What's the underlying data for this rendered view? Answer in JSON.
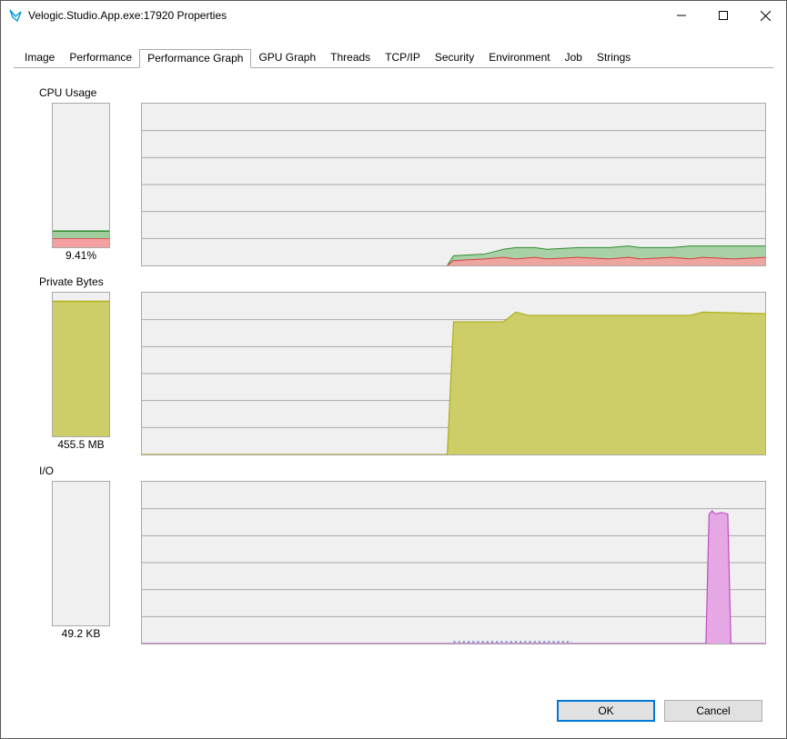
{
  "window": {
    "title": "Velogic.Studio.App.exe:17920 Properties",
    "icon_color": "#0099d8"
  },
  "tabs": {
    "items": [
      "Image",
      "Performance",
      "Performance Graph",
      "GPU Graph",
      "Threads",
      "TCP/IP",
      "Security",
      "Environment",
      "Job",
      "Strings"
    ],
    "active_index": 2
  },
  "panels": {
    "cpu": {
      "label": "CPU Usage",
      "value": "9.41%",
      "mini_height": 160,
      "timeline_height": 180,
      "gridlines": 6,
      "bg": "#f0f0f0",
      "grid_color": "#a9a9a9",
      "series": {
        "green_fill": "#a0cd9e",
        "green_line": "#2e8b2e",
        "red_fill": "#f4a0a0",
        "red_line": "#d63c3c"
      },
      "mini_bands": [
        {
          "from_bottom": 0,
          "height": 10,
          "color": "#f4a0a0",
          "line": "#d63c3c"
        },
        {
          "from_bottom": 10,
          "height": 8,
          "color": "#a0cd9e",
          "line": "#2e8b2e"
        }
      ],
      "timeline_points_green": [
        {
          "x": 0.49,
          "y": 0
        },
        {
          "x": 0.5,
          "y": 6
        },
        {
          "x": 0.55,
          "y": 7
        },
        {
          "x": 0.58,
          "y": 10
        },
        {
          "x": 0.6,
          "y": 11
        },
        {
          "x": 0.63,
          "y": 11
        },
        {
          "x": 0.65,
          "y": 10
        },
        {
          "x": 0.7,
          "y": 11
        },
        {
          "x": 0.75,
          "y": 11
        },
        {
          "x": 0.78,
          "y": 12
        },
        {
          "x": 0.8,
          "y": 11
        },
        {
          "x": 0.85,
          "y": 11
        },
        {
          "x": 0.88,
          "y": 12
        },
        {
          "x": 0.9,
          "y": 12
        },
        {
          "x": 0.95,
          "y": 12
        },
        {
          "x": 1.0,
          "y": 12
        }
      ],
      "timeline_points_red": [
        {
          "x": 0.49,
          "y": 0
        },
        {
          "x": 0.5,
          "y": 3
        },
        {
          "x": 0.55,
          "y": 4
        },
        {
          "x": 0.58,
          "y": 5
        },
        {
          "x": 0.6,
          "y": 4
        },
        {
          "x": 0.63,
          "y": 5
        },
        {
          "x": 0.65,
          "y": 4
        },
        {
          "x": 0.7,
          "y": 5
        },
        {
          "x": 0.75,
          "y": 4
        },
        {
          "x": 0.78,
          "y": 5
        },
        {
          "x": 0.8,
          "y": 4
        },
        {
          "x": 0.85,
          "y": 5
        },
        {
          "x": 0.88,
          "y": 4
        },
        {
          "x": 0.9,
          "y": 5
        },
        {
          "x": 0.95,
          "y": 4
        },
        {
          "x": 1.0,
          "y": 5
        }
      ]
    },
    "mem": {
      "label": "Private Bytes",
      "value": "455.5 MB",
      "mini_height": 160,
      "timeline_height": 180,
      "gridlines": 6,
      "bg": "#f0f0f0",
      "grid_color": "#a9a9a9",
      "series": {
        "fill": "#cdce67",
        "line": "#aeae18"
      },
      "mini_fill_pct": 94,
      "timeline_points": [
        {
          "x": 0.0,
          "y": 0
        },
        {
          "x": 0.49,
          "y": 0
        },
        {
          "x": 0.5,
          "y": 82
        },
        {
          "x": 0.58,
          "y": 82
        },
        {
          "x": 0.6,
          "y": 88
        },
        {
          "x": 0.62,
          "y": 86
        },
        {
          "x": 0.88,
          "y": 86
        },
        {
          "x": 0.9,
          "y": 88
        },
        {
          "x": 1.0,
          "y": 87
        }
      ]
    },
    "io": {
      "label": "I/O",
      "value": "49.2 KB",
      "mini_height": 160,
      "timeline_height": 180,
      "gridlines": 6,
      "bg": "#f0f0f0",
      "grid_color": "#a9a9a9",
      "series": {
        "fill": "#e5a8e5",
        "line": "#c050c0",
        "dotted": "#4060c8"
      },
      "timeline_points": [
        {
          "x": 0.0,
          "y": 0
        },
        {
          "x": 0.905,
          "y": 0
        },
        {
          "x": 0.91,
          "y": 80
        },
        {
          "x": 0.915,
          "y": 82
        },
        {
          "x": 0.92,
          "y": 80
        },
        {
          "x": 0.93,
          "y": 81
        },
        {
          "x": 0.94,
          "y": 80
        },
        {
          "x": 0.945,
          "y": 0
        },
        {
          "x": 1.0,
          "y": 0
        }
      ],
      "dotted_from_x": 0.5,
      "dotted_to_x": 0.69
    }
  },
  "buttons": {
    "ok": "OK",
    "cancel": "Cancel"
  }
}
